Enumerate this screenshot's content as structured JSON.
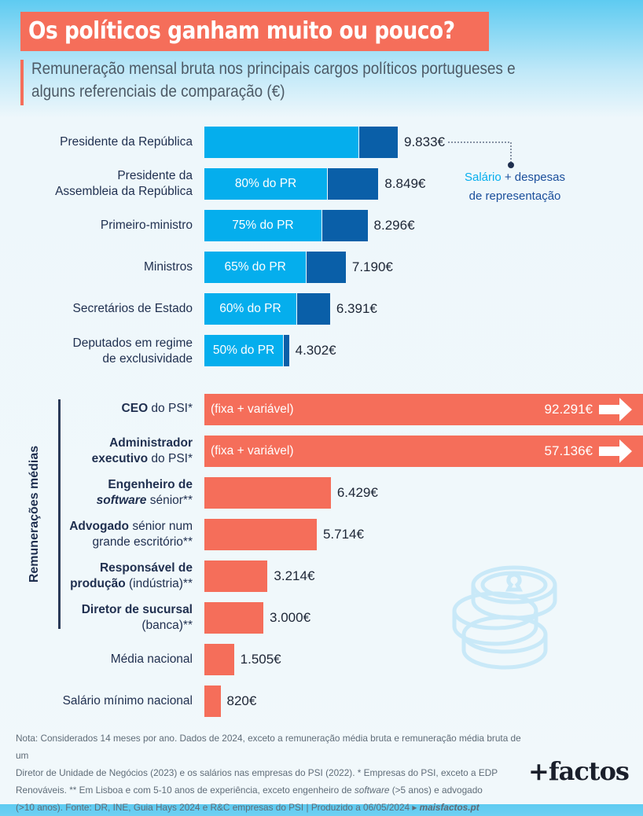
{
  "title": "Os políticos ganham muito ou pouco?",
  "subtitle_line1": "Remuneração mensal bruta nos principais cargos políticos portugueses e",
  "subtitle_line2": "alguns referenciais de comparação (€)",
  "legend": {
    "salary": "Salário",
    "plus": " + despesas",
    "line2": "de representação",
    "salary_color": "#05aeed",
    "rep_color": "#0a5fa8"
  },
  "group_label": "Remunerações médias",
  "colors": {
    "salary": "#05aeed",
    "representation": "#0a5fa8",
    "reference": "#f56e5a",
    "title_bg": "#f56e5a"
  },
  "chart_data": {
    "type": "bar",
    "orientation": "horizontal",
    "unit": "€",
    "political": [
      {
        "label": "Presidente da República",
        "total": 9833,
        "total_label": "9.833€",
        "pct_label": "",
        "salary_share_pct": 79.5
      },
      {
        "label": "Presidente da Assembleia da República",
        "total": 8849,
        "total_label": "8.849€",
        "pct_label": "80% do PR",
        "salary_share_pct": 70.5
      },
      {
        "label": "Primeiro-ministro",
        "total": 8296,
        "total_label": "8.296€",
        "pct_label": "75% do PR",
        "salary_share_pct": 71.7
      },
      {
        "label": "Ministros",
        "total": 7190,
        "total_label": "7.190€",
        "pct_label": "65% do PR",
        "salary_share_pct": 71.9
      },
      {
        "label": "Secretários de Estado",
        "total": 6391,
        "total_label": "6.391€",
        "pct_label": "60% do PR",
        "salary_share_pct": 73.2
      },
      {
        "label": "Deputados em regime de exclusividade",
        "total": 4302,
        "total_label": "4.302€",
        "pct_label": "50% do PR",
        "salary_share_pct": 93.0
      }
    ],
    "references": [
      {
        "label_bold": "CEO",
        "label_rest": " do PSI*",
        "value": 92291,
        "value_label": "92.291€",
        "note": "(fixa + variável)",
        "truncated": true,
        "group": "Remunerações médias"
      },
      {
        "label_bold": "Administrador executivo",
        "label_rest": " do PSI*",
        "value": 57136,
        "value_label": "57.136€",
        "note": "(fixa + variável)",
        "truncated": true,
        "group": "Remunerações médias"
      },
      {
        "label_bold": "Engenheiro de software",
        "label_rest": " sénior**",
        "value": 6429,
        "value_label": "6.429€",
        "group": "Remunerações médias"
      },
      {
        "label_bold": "Advogado",
        "label_rest": " sénior num grande escritório**",
        "value": 5714,
        "value_label": "5.714€",
        "group": "Remunerações médias"
      },
      {
        "label_bold": "Responsável de produção",
        "label_rest": " (indústria)**",
        "value": 3214,
        "value_label": "3.214€",
        "group": "Remunerações médias"
      },
      {
        "label_bold": "Diretor de sucursal",
        "label_rest": " (banca)**",
        "value": 3000,
        "value_label": "3.000€",
        "group": "Remunerações médias"
      },
      {
        "label_bold": "",
        "label_rest": "Média nacional",
        "value": 1505,
        "value_label": "1.505€"
      },
      {
        "label_bold": "",
        "label_rest": "Salário mínimo nacional",
        "value": 820,
        "value_label": "820€"
      }
    ]
  },
  "labels": {
    "pr": "Presidente da República",
    "par_1": "Presidente da",
    "par_2": "Assembleia da República",
    "pm": "Primeiro-ministro",
    "min": "Ministros",
    "se": "Secretários de Estado",
    "dep_1": "Deputados em regime",
    "dep_2": "de exclusividade",
    "ceo_b": "CEO",
    "ceo_r": " do PSI*",
    "adm_b1": "Administrador",
    "adm_b2": "executivo",
    "adm_r": " do PSI*",
    "eng_b1": "Engenheiro de",
    "eng_b2": "software",
    "eng_r": " sénior**",
    "adv_b": "Advogado",
    "adv_r1": " sénior num",
    "adv_r2": "grande escritório**",
    "resp_b1": "Responsável de",
    "resp_b2": "produção",
    "resp_r": " (indústria)**",
    "dir_b": "Diretor de sucursal",
    "dir_r": "(banca)**",
    "media": "Média nacional",
    "smn": "Salário mínimo nacional"
  },
  "note": {
    "line1": "Nota: Considerados 14 meses por ano. Dados de 2024, exceto a remuneração média bruta e remuneração média bruta de um",
    "line2": "Diretor de Unidade de Negócios (2023) e os salários nas empresas do PSI (2022). * Empresas do PSI, exceto a EDP",
    "line3a": "Renováveis. ** Em Lisboa e com 5-10 anos de experiência, exceto engenheiro de ",
    "line3b": "software",
    "line3c": " (>5 anos) e advogado",
    "line4": "(>10 anos). Fonte: DR, INE, Guia Hays 2024 e R&C empresas do PSI | Produzido a 06/05/2024 ▸ ",
    "link": "maisfactos.pt"
  },
  "logo": "+factos"
}
